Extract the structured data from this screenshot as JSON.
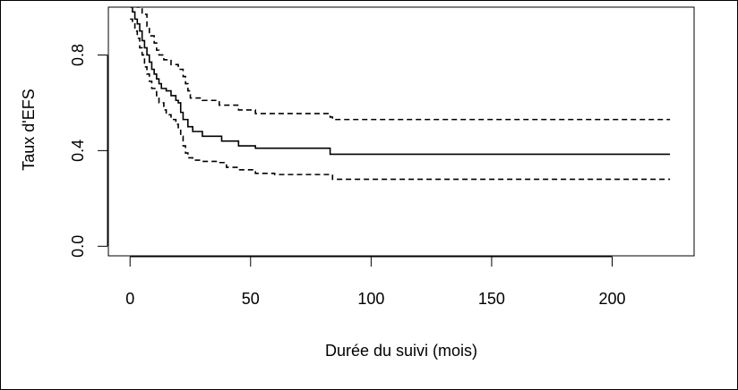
{
  "chart_data": {
    "type": "line",
    "title": "",
    "xlabel": "Durée du suivi (mois)",
    "ylabel": "Taux d'EFS",
    "xlim": [
      -9,
      234
    ],
    "ylim": [
      -0.04,
      1.0
    ],
    "xticks": [
      0,
      50,
      100,
      150,
      200
    ],
    "xtick_labels": [
      "0",
      "50",
      "100",
      "150",
      "200"
    ],
    "yticks": [
      0.0,
      0.4,
      0.8
    ],
    "ytick_labels": [
      "0.0",
      "0.4",
      "0.8"
    ],
    "grid": false,
    "legend": "none",
    "series": [
      {
        "style": "solid",
        "points": [
          [
            0,
            1.0
          ],
          [
            1,
            0.98
          ],
          [
            2,
            0.95
          ],
          [
            3,
            0.93
          ],
          [
            4,
            0.9
          ],
          [
            5,
            0.86
          ],
          [
            6,
            0.83
          ],
          [
            7,
            0.8
          ],
          [
            8,
            0.77
          ],
          [
            9,
            0.74
          ],
          [
            10,
            0.72
          ],
          [
            11,
            0.7
          ],
          [
            12,
            0.68
          ],
          [
            13,
            0.66
          ],
          [
            15,
            0.65
          ],
          [
            17,
            0.63
          ],
          [
            19,
            0.61
          ],
          [
            20,
            0.6
          ],
          [
            21,
            0.56
          ],
          [
            22,
            0.53
          ],
          [
            24,
            0.5
          ],
          [
            26,
            0.48
          ],
          [
            30,
            0.46
          ],
          [
            38,
            0.44
          ],
          [
            45,
            0.42
          ],
          [
            52,
            0.41
          ],
          [
            60,
            0.41
          ],
          [
            83,
            0.385
          ],
          [
            224,
            0.385
          ]
        ]
      },
      {
        "style": "dashed",
        "points": [
          [
            0,
            1.02
          ],
          [
            3,
            1.0
          ],
          [
            5,
            0.97
          ],
          [
            7,
            0.92
          ],
          [
            8,
            0.88
          ],
          [
            10,
            0.85
          ],
          [
            11,
            0.82
          ],
          [
            12,
            0.8
          ],
          [
            14,
            0.78
          ],
          [
            17,
            0.76
          ],
          [
            20,
            0.74
          ],
          [
            22,
            0.71
          ],
          [
            23,
            0.68
          ],
          [
            24,
            0.65
          ],
          [
            25,
            0.62
          ],
          [
            30,
            0.61
          ],
          [
            37,
            0.59
          ],
          [
            45,
            0.57
          ],
          [
            52,
            0.555
          ],
          [
            83,
            0.54
          ],
          [
            84,
            0.53
          ],
          [
            224,
            0.53
          ]
        ]
      },
      {
        "style": "dashed",
        "points": [
          [
            0,
            0.95
          ],
          [
            1,
            0.93
          ],
          [
            2,
            0.9
          ],
          [
            3,
            0.87
          ],
          [
            4,
            0.83
          ],
          [
            5,
            0.8
          ],
          [
            6,
            0.75
          ],
          [
            7,
            0.72
          ],
          [
            8,
            0.69
          ],
          [
            9,
            0.66
          ],
          [
            11,
            0.63
          ],
          [
            12,
            0.6
          ],
          [
            14,
            0.57
          ],
          [
            15,
            0.55
          ],
          [
            17,
            0.53
          ],
          [
            19,
            0.51
          ],
          [
            20,
            0.49
          ],
          [
            21,
            0.46
          ],
          [
            22,
            0.42
          ],
          [
            23,
            0.39
          ],
          [
            24,
            0.37
          ],
          [
            26,
            0.36
          ],
          [
            30,
            0.355
          ],
          [
            37,
            0.35
          ],
          [
            40,
            0.33
          ],
          [
            45,
            0.32
          ],
          [
            52,
            0.305
          ],
          [
            60,
            0.3
          ],
          [
            83,
            0.3
          ],
          [
            84,
            0.28
          ],
          [
            224,
            0.28
          ]
        ]
      }
    ]
  }
}
